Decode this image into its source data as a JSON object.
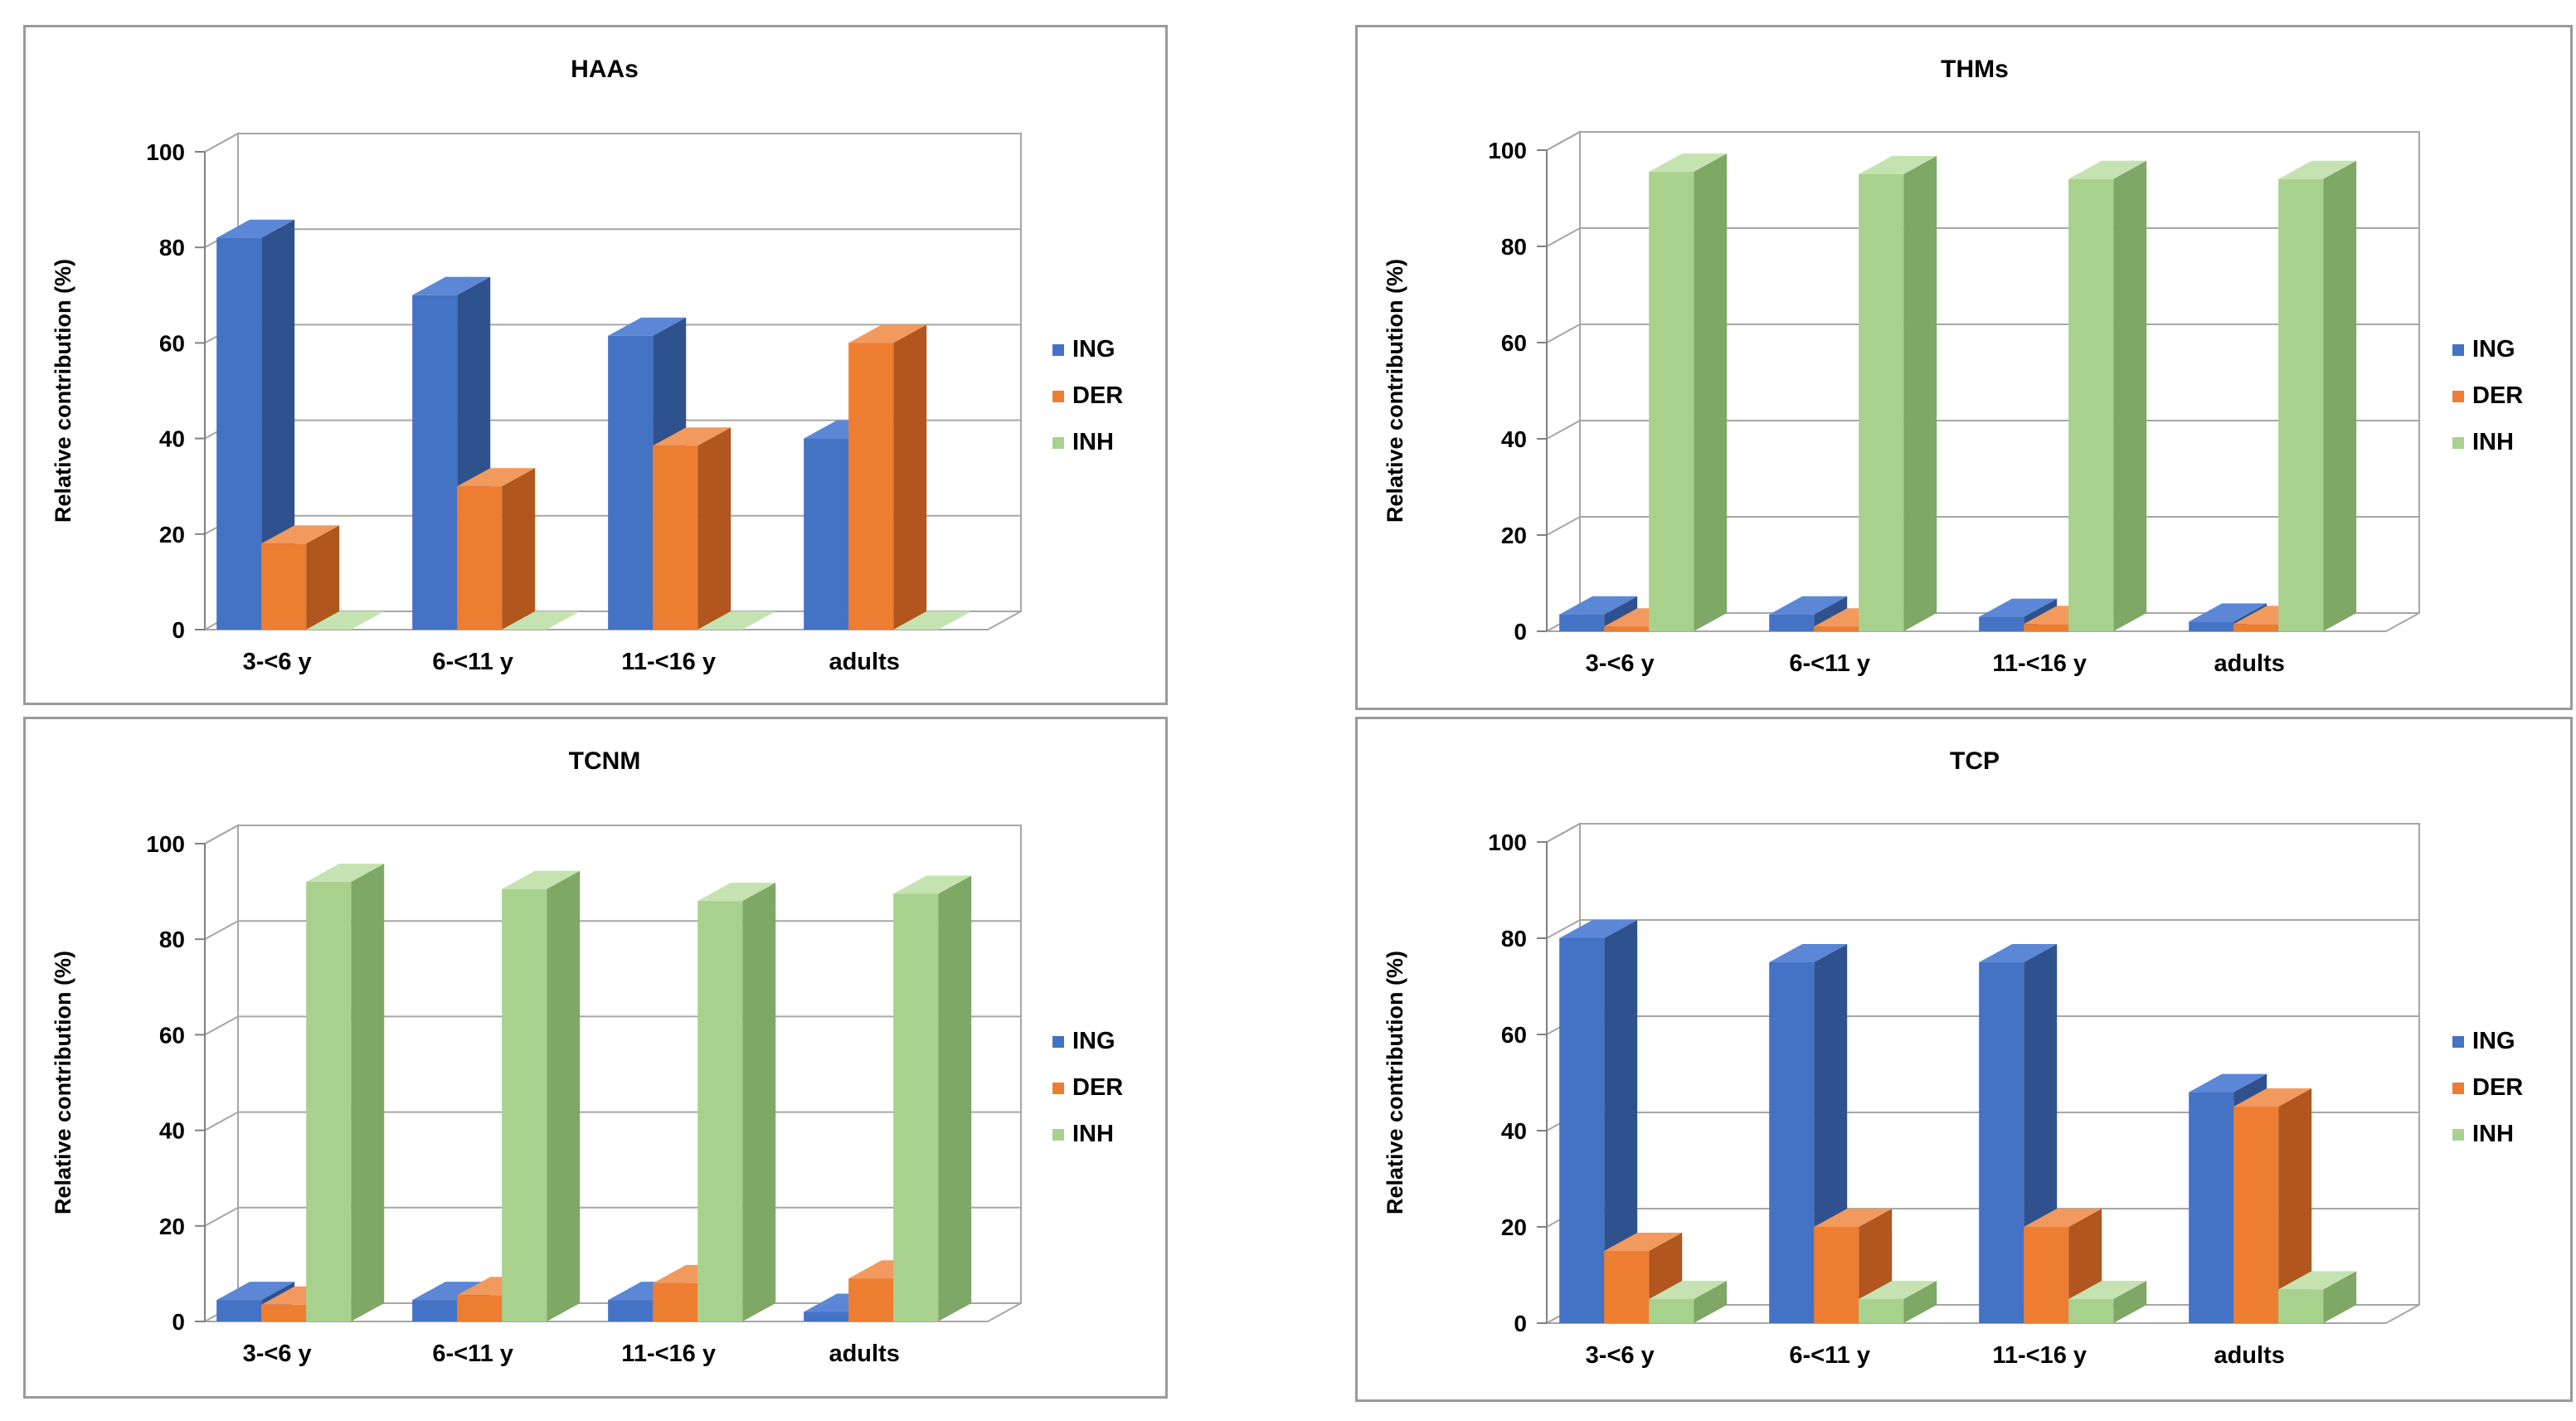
{
  "colors": {
    "ING": {
      "front": "#4472c4",
      "side": "#2f528f",
      "top": "#5b87d6"
    },
    "DER": {
      "front": "#ed7d31",
      "side": "#b0561e",
      "top": "#f29a5e"
    },
    "INH": {
      "front": "#a9d18e",
      "side": "#7fa765",
      "top": "#c5e3b1"
    }
  },
  "chart_data": [
    {
      "type": "bar",
      "title": "HAAs",
      "ylabel": "Relative contribution (%)",
      "ylim": [
        0,
        100
      ],
      "yticks": [
        "0",
        "20",
        "40",
        "60",
        "80",
        "100"
      ],
      "categories": [
        "3-<6 y",
        "6-<11 y",
        "11-<16 y",
        "adults"
      ],
      "legend_position": "right",
      "series": [
        {
          "name": "ING",
          "values": [
            82,
            70,
            61.5,
            40
          ]
        },
        {
          "name": "DER",
          "values": [
            18,
            30,
            38.5,
            60
          ]
        },
        {
          "name": "INH",
          "values": [
            0,
            0,
            0,
            0
          ]
        }
      ]
    },
    {
      "type": "bar",
      "title": "THMs",
      "ylabel": "Relative contribution (%)",
      "ylim": [
        0,
        100
      ],
      "yticks": [
        "0",
        "20",
        "40",
        "60",
        "80",
        "100"
      ],
      "categories": [
        "3-<6 y",
        "6-<11 y",
        "11-<16 y",
        "adults"
      ],
      "legend_position": "right",
      "series": [
        {
          "name": "ING",
          "values": [
            3.5,
            3.5,
            3,
            2
          ]
        },
        {
          "name": "DER",
          "values": [
            1,
            1,
            1.5,
            1.5
          ]
        },
        {
          "name": "INH",
          "values": [
            95.5,
            95,
            94,
            94
          ]
        }
      ]
    },
    {
      "type": "bar",
      "title": "TCNM",
      "ylabel": "Relative contribution (%)",
      "ylim": [
        0,
        100
      ],
      "yticks": [
        "0",
        "20",
        "40",
        "60",
        "80",
        "100"
      ],
      "categories": [
        "3-<6 y",
        "6-<11 y",
        "11-<16 y",
        "adults"
      ],
      "legend_position": "right",
      "series": [
        {
          "name": "ING",
          "values": [
            4.5,
            4.5,
            4.5,
            2
          ]
        },
        {
          "name": "DER",
          "values": [
            3.5,
            5.5,
            8,
            9
          ]
        },
        {
          "name": "INH",
          "values": [
            92,
            90.5,
            88,
            89.5
          ]
        }
      ]
    },
    {
      "type": "bar",
      "title": "TCP",
      "ylabel": "Relative contribution (%)",
      "ylim": [
        0,
        100
      ],
      "yticks": [
        "0",
        "20",
        "40",
        "60",
        "80",
        "100"
      ],
      "categories": [
        "3-<6 y",
        "6-<11 y",
        "11-<16 y",
        "adults"
      ],
      "legend_position": "right",
      "series": [
        {
          "name": "ING",
          "values": [
            80,
            75,
            75,
            48
          ]
        },
        {
          "name": "DER",
          "values": [
            15,
            20,
            20,
            45
          ]
        },
        {
          "name": "INH",
          "values": [
            5,
            5,
            5,
            7
          ]
        }
      ]
    }
  ]
}
